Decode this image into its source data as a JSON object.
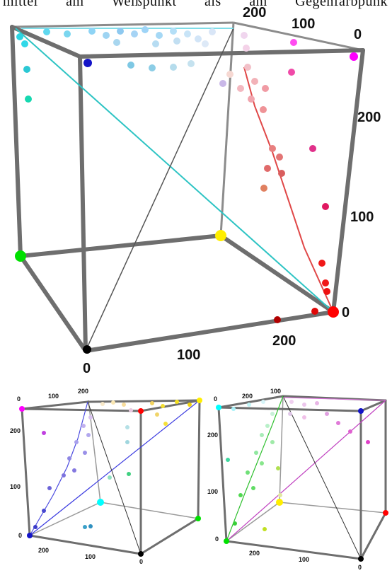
{
  "caption": {
    "text": "mittel  am  Weißpunkt  als  am  Gegenfarbpunk"
  },
  "cubes": [
    {
      "id": "cube-red-view",
      "tick_labels": [
        "200",
        "100",
        "0",
        "200",
        "100",
        "0",
        "100",
        "200",
        "0"
      ],
      "corner_colors": {
        "blue": "#1414c8",
        "magenta": "#ff00ff",
        "green": "#00e000",
        "yellow": "#ffee00",
        "red": "#ff0000",
        "black": "#000000",
        "white": "#ffffff"
      },
      "diagonal_color": "#d44a4a"
    },
    {
      "id": "cube-blue-view",
      "tick_labels": [
        "0",
        "100",
        "200",
        "200",
        "100",
        "0",
        "200",
        "100",
        "0"
      ],
      "corner_colors": {
        "magenta": "#ff00ff",
        "red": "#ff0000",
        "yellow": "#ffee00",
        "cyan": "#00ffff",
        "green": "#00e000",
        "blue": "#1414c8",
        "black": "#000000"
      },
      "diagonal_color": "#3b3be0"
    },
    {
      "id": "cube-green-view",
      "tick_labels": [
        "0",
        "200",
        "100",
        "200",
        "100",
        "0",
        "200",
        "100",
        "0"
      ],
      "corner_colors": {
        "cyan": "#00ffff",
        "blue": "#1414c8",
        "yellow": "#ffee00",
        "red": "#ff0000",
        "green": "#00e000",
        "black": "#000000"
      },
      "diagonal_color": "#30c030"
    }
  ]
}
